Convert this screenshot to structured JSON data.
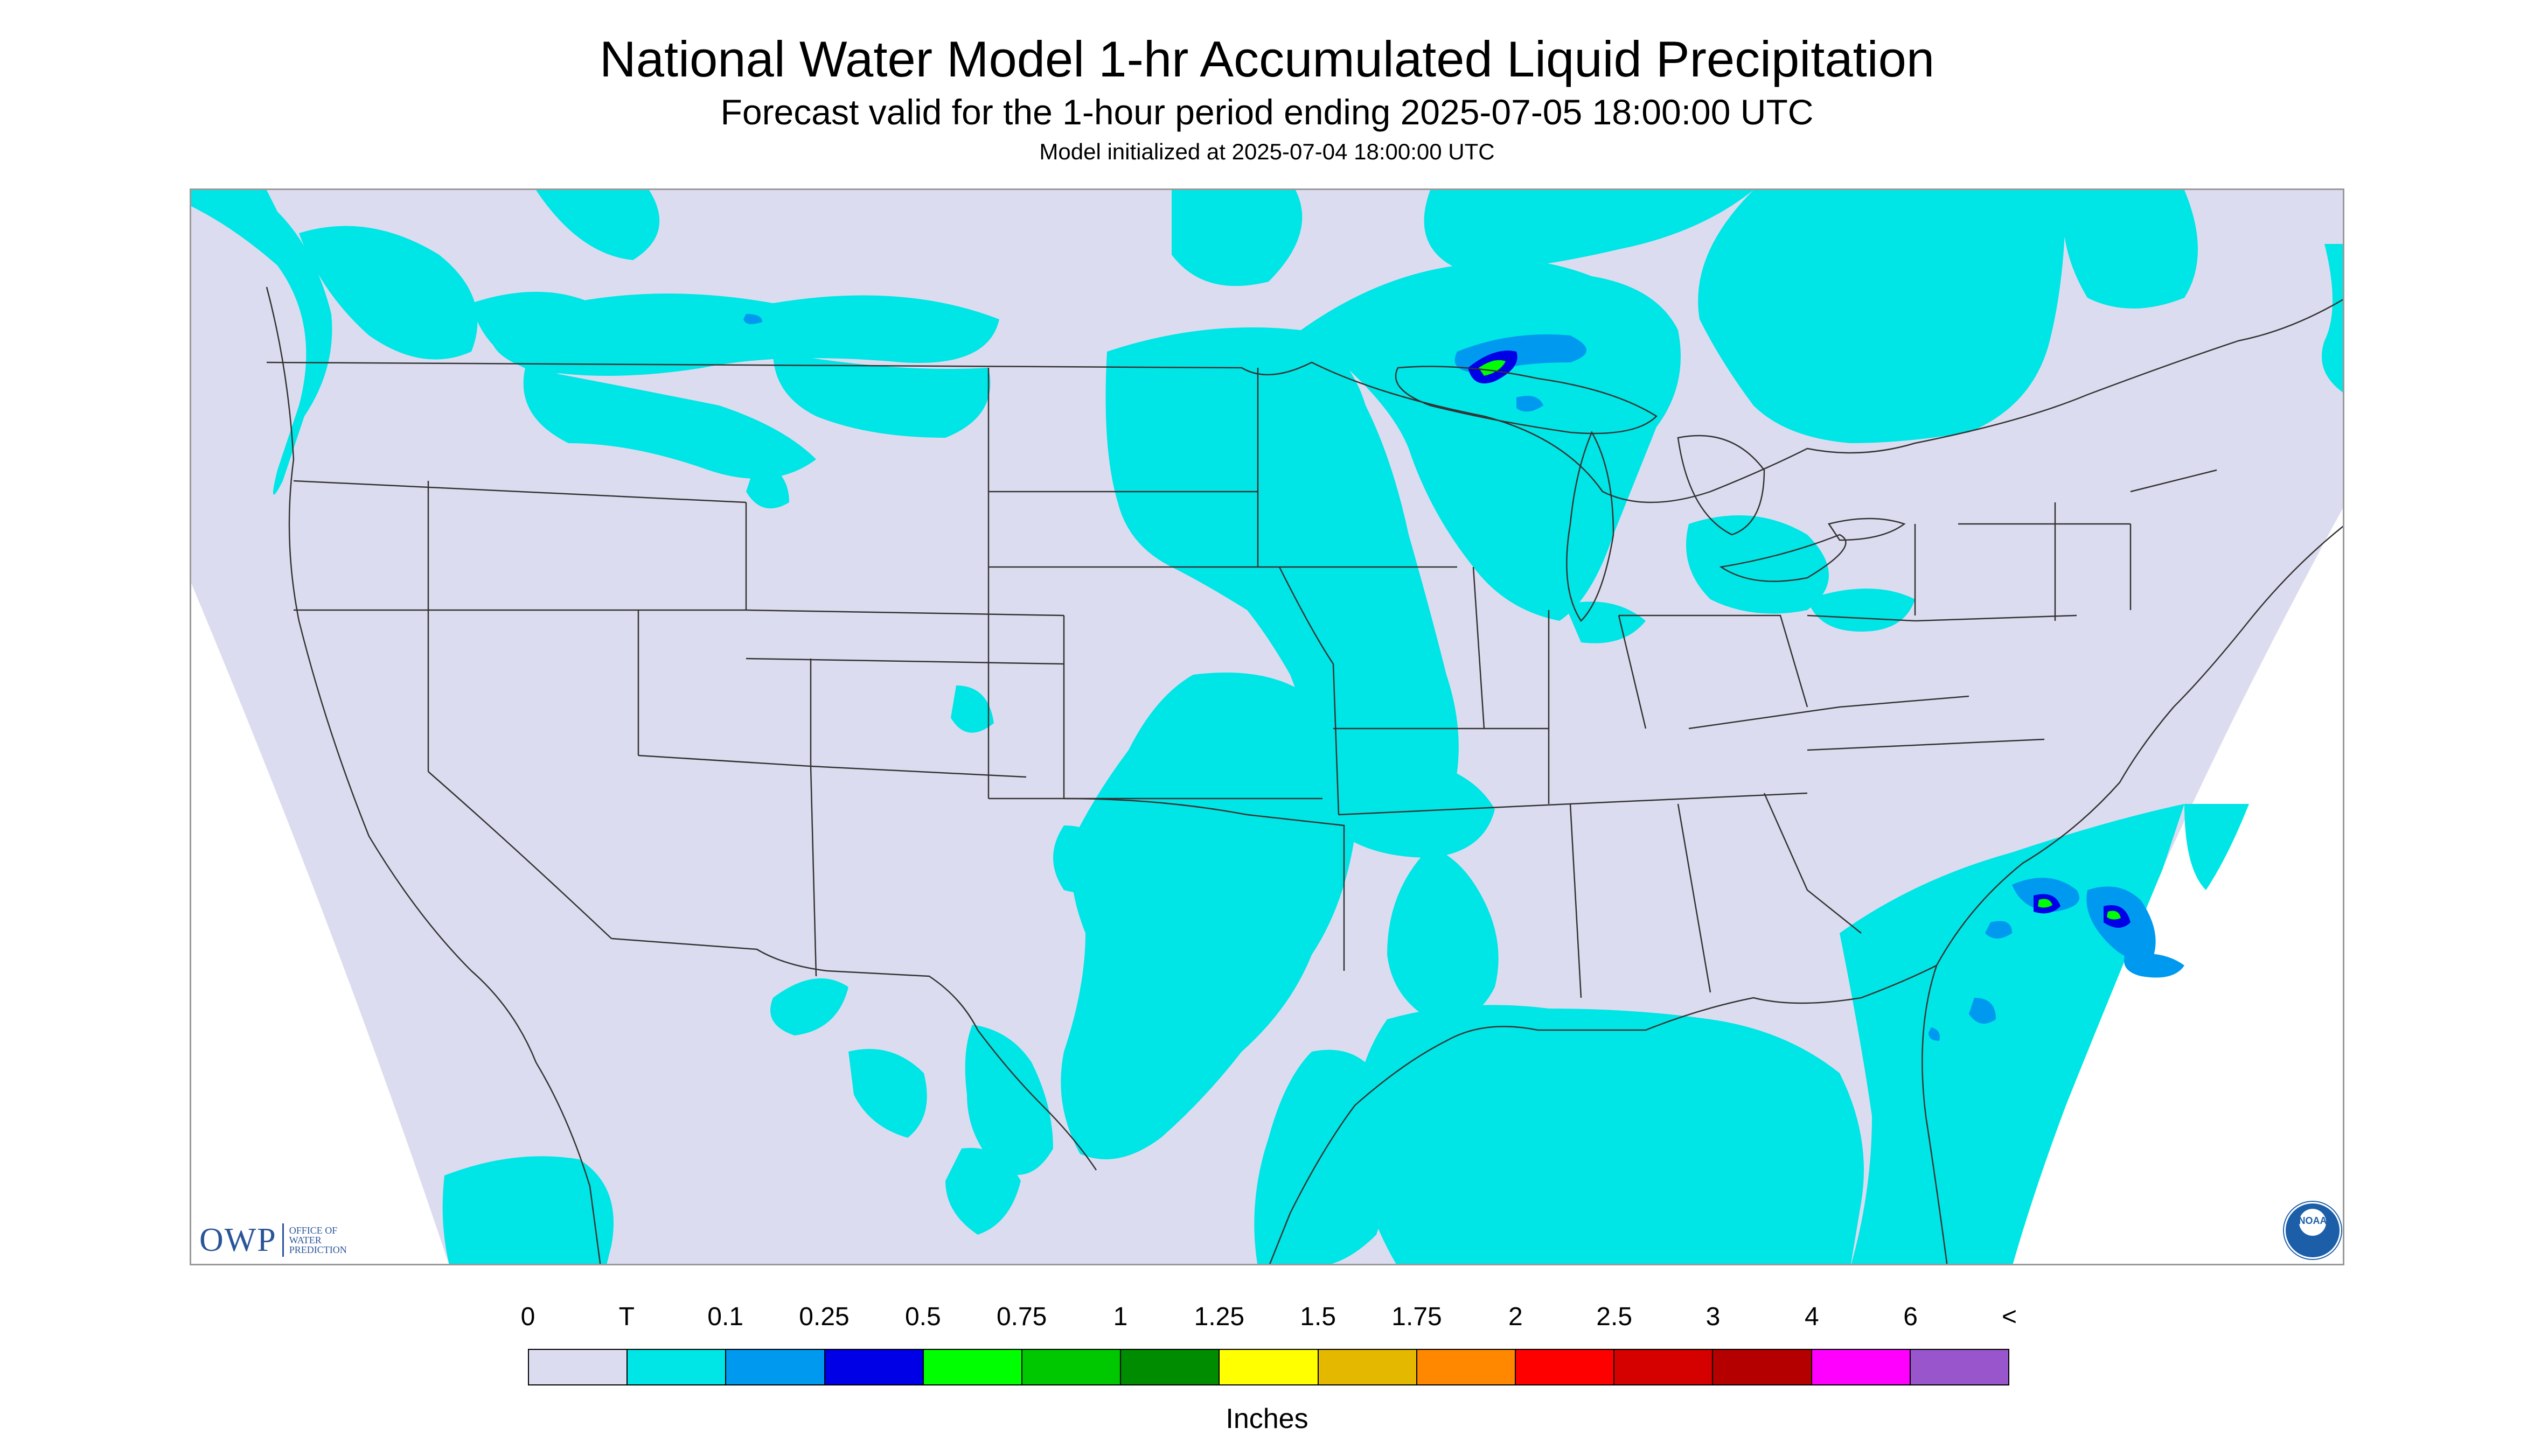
{
  "title": "National Water Model 1-hr Accumulated Liquid Precipitation",
  "subtitle": "Forecast valid for the 1-hour period ending 2025-07-05 18:00:00 UTC",
  "model_init": "Model initialized at 2025-07-04 18:00:00 UTC",
  "logos": {
    "owp_mark": "OWP",
    "owp_text": [
      "OFFICE OF",
      "WATER",
      "PREDICTION"
    ],
    "noaa": "NOAA"
  },
  "legend": {
    "labels": [
      "0",
      "T",
      "0.1",
      "0.25",
      "0.5",
      "0.75",
      "1",
      "1.25",
      "1.5",
      "1.75",
      "2",
      "2.5",
      "3",
      "4",
      "6",
      "<"
    ],
    "colors": [
      "#dcdcf0",
      "#00e5e5",
      "#0099f0",
      "#0000e6",
      "#00ff00",
      "#00c800",
      "#008c00",
      "#ffff00",
      "#e5b800",
      "#ff8800",
      "#ff0000",
      "#d50000",
      "#b50000",
      "#ff00ff",
      "#9955cc"
    ],
    "units": "Inches"
  },
  "map": {
    "background_color": "#dcdcf0",
    "outside_color": "#ffffff",
    "light_precip_color": "#00e5e5",
    "moderate_precip_color": "#0099f0",
    "heavy_precip_color": "#0000e6",
    "peak_precip_color": "#00ff00",
    "boundary_color": "#333333"
  }
}
